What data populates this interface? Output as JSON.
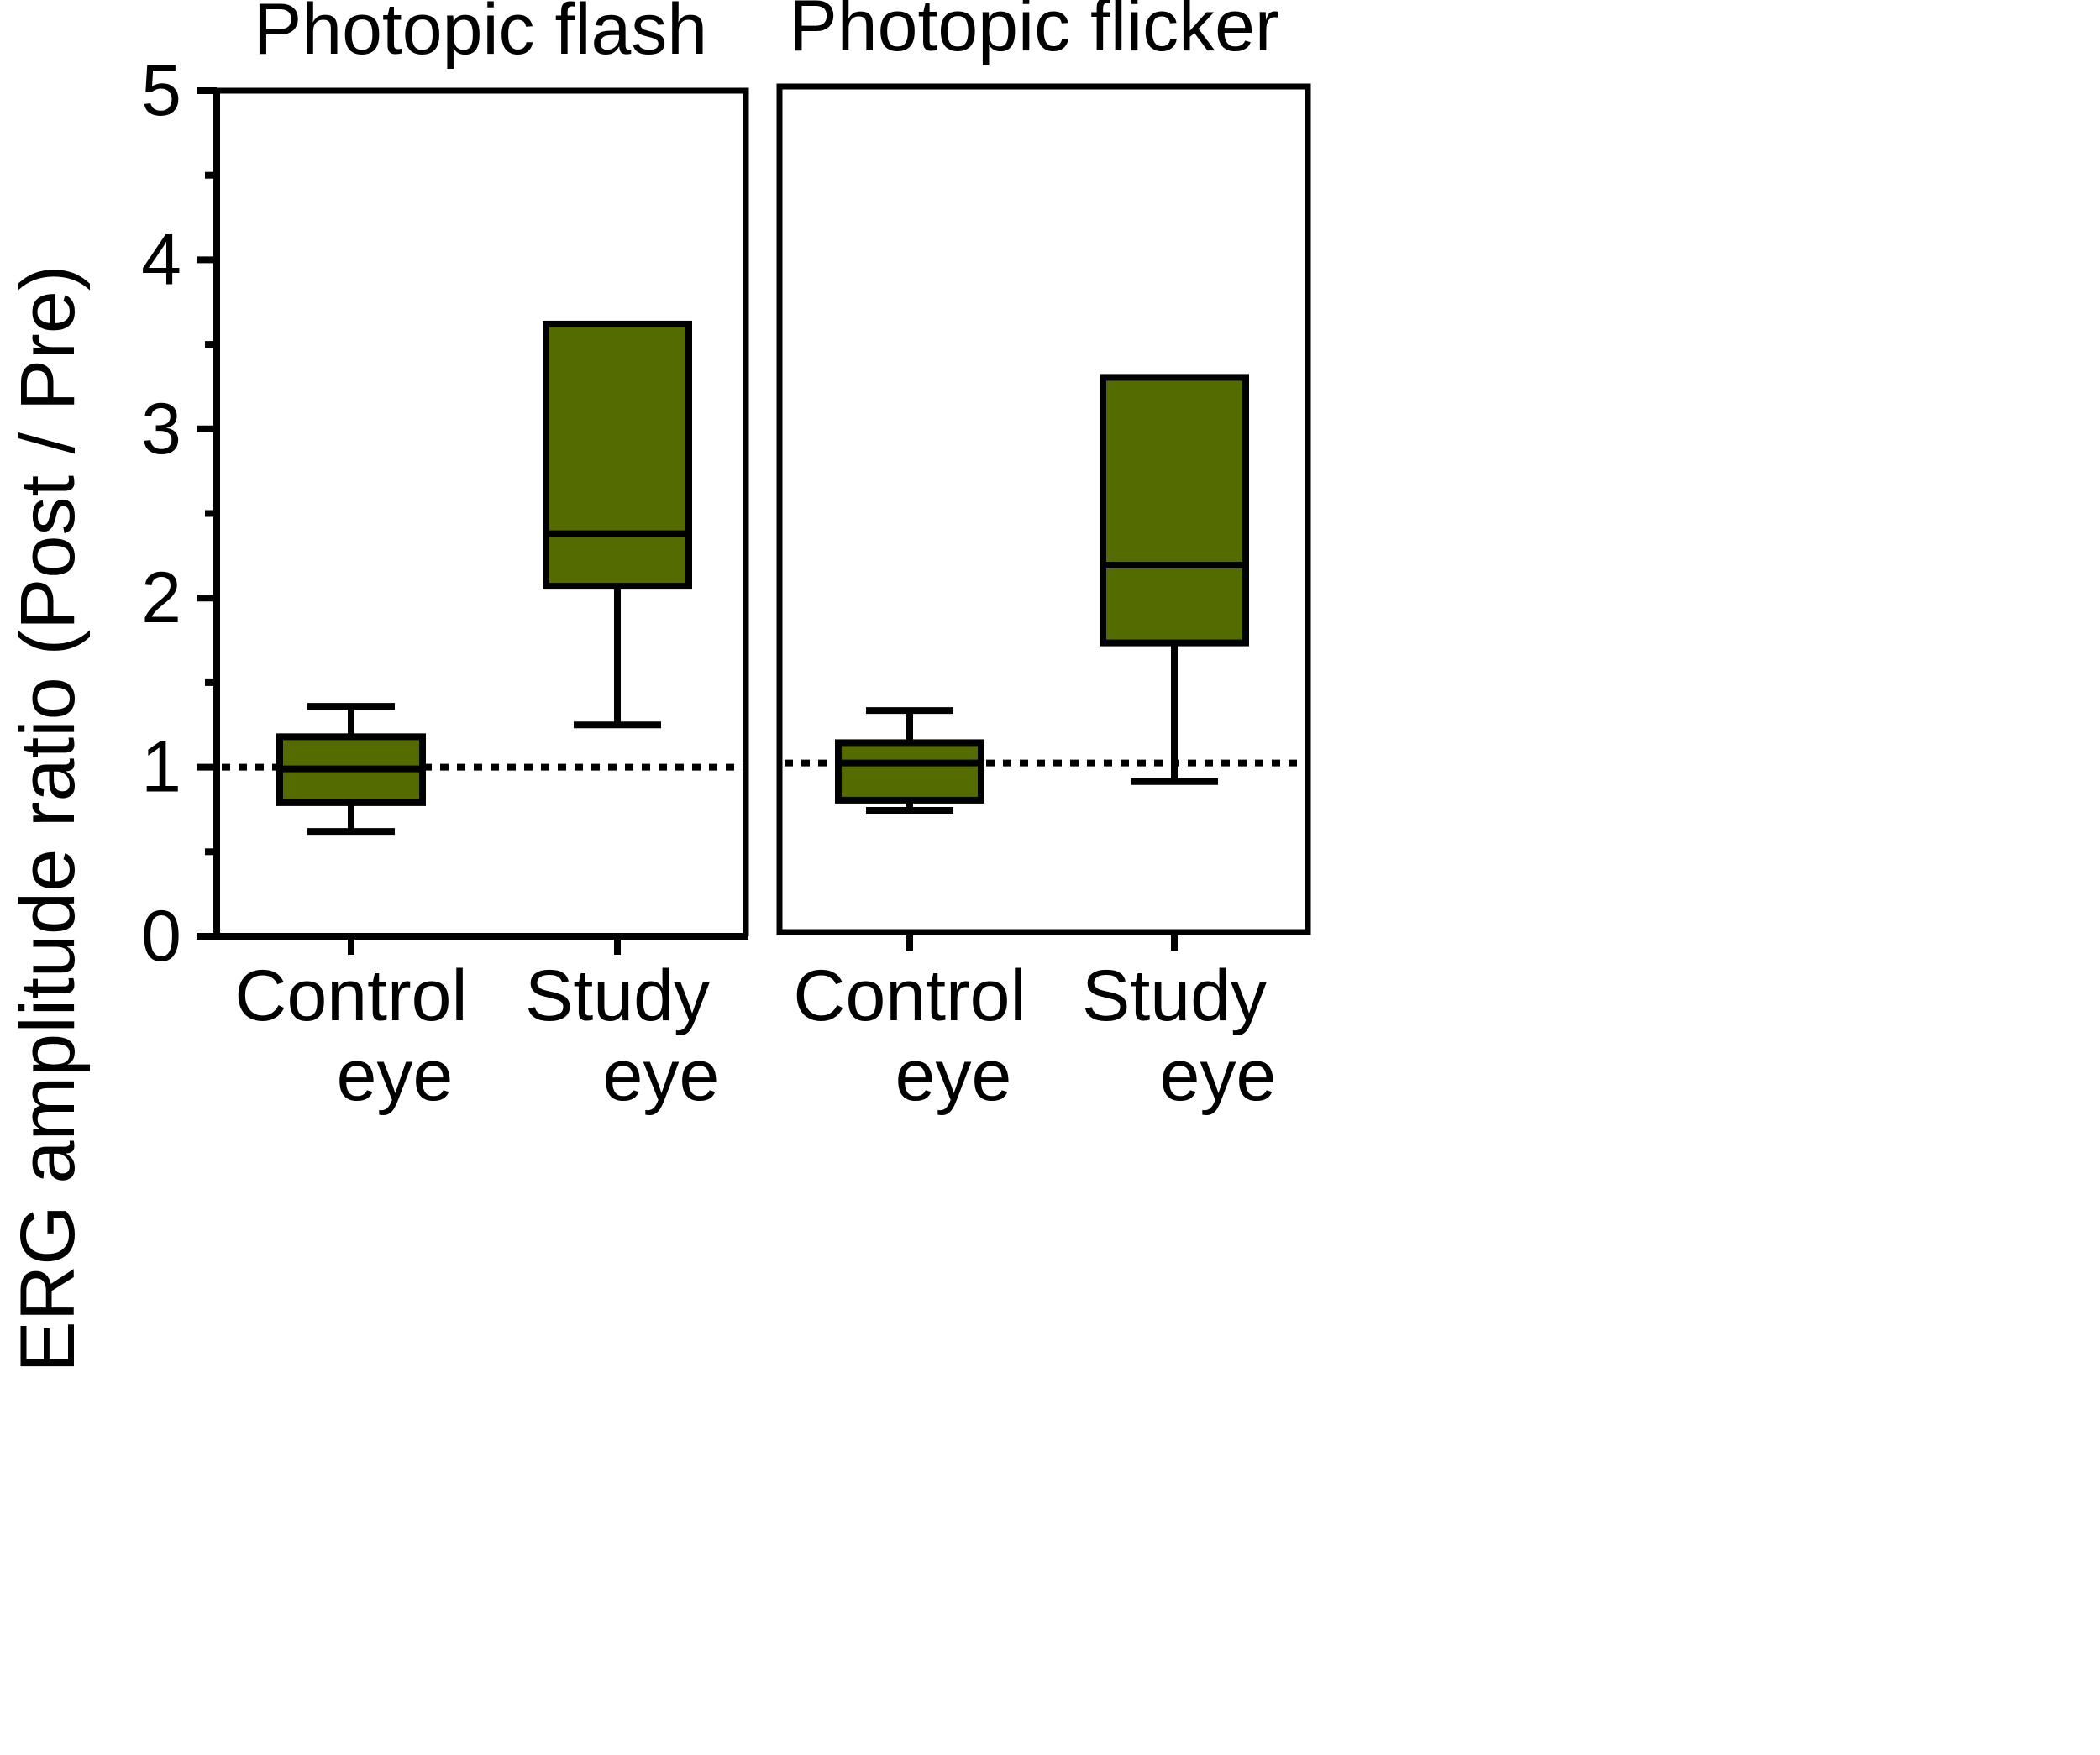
{
  "chart_data": {
    "type": "box",
    "ylabel": "ERG amplitude ratio (Post / Pre)",
    "ylim": [
      0,
      5
    ],
    "y_ticks": [
      0,
      1,
      2,
      3,
      4,
      5
    ],
    "y_tick_labels": [
      "0",
      "1",
      "2",
      "3",
      "4",
      "5"
    ],
    "y_minor_ticks": [
      0.5,
      1.5,
      2.5,
      3.5,
      4.5
    ],
    "reference_line": {
      "y": 1,
      "style": "dotted"
    },
    "box_fill_color": "#546b00",
    "grid": false,
    "panels": [
      {
        "title": "Photopic flash",
        "categories": [
          {
            "line1": "Control",
            "line2": "eye"
          },
          {
            "line1": "Study",
            "line2": "eye"
          }
        ],
        "boxes": [
          {
            "whisker_low": 0.62,
            "q1": 0.79,
            "median": 0.99,
            "q3": 1.18,
            "whisker_high": 1.36
          },
          {
            "whisker_low": 1.25,
            "q1": 2.07,
            "median": 2.38,
            "q3": 3.62,
            "whisker_high": 3.62
          }
        ]
      },
      {
        "title": "Photopic flicker",
        "categories": [
          {
            "line1": "Control",
            "line2": "eye"
          },
          {
            "line1": "Study",
            "line2": "eye"
          }
        ],
        "boxes": [
          {
            "whisker_low": 0.72,
            "q1": 0.78,
            "median": 1.0,
            "q3": 1.12,
            "whisker_high": 1.31
          },
          {
            "whisker_low": 0.89,
            "q1": 1.71,
            "median": 2.17,
            "q3": 3.28,
            "whisker_high": 3.28
          }
        ]
      }
    ]
  }
}
